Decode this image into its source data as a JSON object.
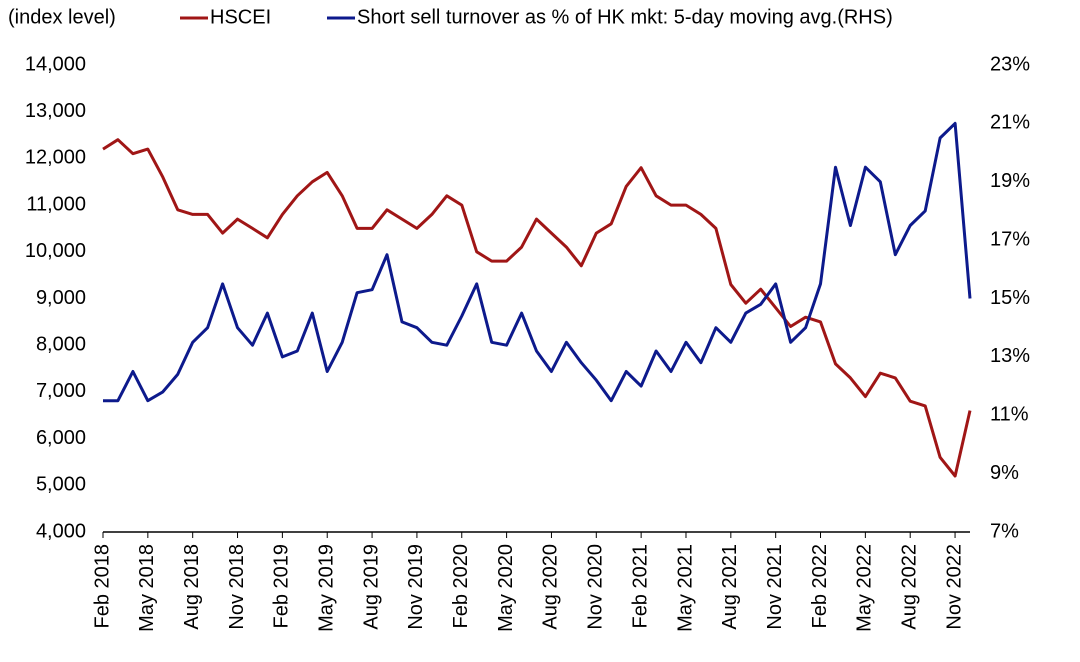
{
  "chart_data": {
    "type": "line",
    "y_label": "(index level)",
    "x": [
      "2018-02",
      "2018-03",
      "2018-04",
      "2018-05",
      "2018-06",
      "2018-07",
      "2018-08",
      "2018-09",
      "2018-10",
      "2018-11",
      "2018-12",
      "2019-01",
      "2019-02",
      "2019-03",
      "2019-04",
      "2019-05",
      "2019-06",
      "2019-07",
      "2019-08",
      "2019-09",
      "2019-10",
      "2019-11",
      "2019-12",
      "2020-01",
      "2020-02",
      "2020-03",
      "2020-04",
      "2020-05",
      "2020-06",
      "2020-07",
      "2020-08",
      "2020-09",
      "2020-10",
      "2020-11",
      "2020-12",
      "2021-01",
      "2021-02",
      "2021-03",
      "2021-04",
      "2021-05",
      "2021-06",
      "2021-07",
      "2021-08",
      "2021-09",
      "2021-10",
      "2021-11",
      "2021-12",
      "2022-01",
      "2022-02",
      "2022-03",
      "2022-04",
      "2022-05",
      "2022-06",
      "2022-07",
      "2022-08",
      "2022-09",
      "2022-10",
      "2022-11",
      "2022-12"
    ],
    "series": [
      {
        "name": "HSCEI",
        "color": "#a01616",
        "values": [
          12200,
          12400,
          12100,
          12200,
          11600,
          10900,
          10800,
          10800,
          10400,
          10700,
          10500,
          10300,
          10800,
          11200,
          11500,
          11700,
          11200,
          10500,
          10500,
          10900,
          10700,
          10500,
          10800,
          11200,
          11000,
          10000,
          9800,
          9800,
          10100,
          10700,
          10400,
          10100,
          9700,
          10400,
          10600,
          11400,
          11800,
          11200,
          11000,
          11000,
          10800,
          10500,
          9300,
          8900,
          9200,
          8800,
          8400,
          8600,
          8500,
          7600,
          7300,
          6900,
          7400,
          7300,
          6800,
          6700,
          5600,
          5200,
          6600
        ]
      },
      {
        "name": "Short sell turnover as % of HK mkt: 5-day moving avg.(RHS)",
        "color": "#0d1a8c",
        "axis": "y2",
        "values": [
          11.5,
          11.5,
          12.5,
          11.5,
          11.8,
          12.4,
          13.5,
          14,
          15.5,
          14,
          13.4,
          14.5,
          13,
          13.2,
          14.5,
          12.5,
          13.5,
          15.2,
          15.3,
          16.5,
          14.2,
          14,
          13.5,
          13.4,
          14.4,
          15.5,
          13.5,
          13.4,
          14.5,
          13.2,
          12.5,
          13.5,
          12.8,
          12.2,
          11.5,
          12.5,
          12,
          13.2,
          12.5,
          13.5,
          12.8,
          14,
          13.5,
          14.5,
          14.8,
          15.5,
          13.5,
          14,
          15.5,
          19.5,
          17.5,
          19.5,
          19,
          16.5,
          17.5,
          18,
          20.5,
          21,
          15
        ]
      }
    ],
    "xlim": [
      "2018-02",
      "2022-12"
    ],
    "xticks": [
      {
        "value": "2018-02",
        "label": "Feb 2018"
      },
      {
        "value": "2018-05",
        "label": "May 2018"
      },
      {
        "value": "2018-08",
        "label": "Aug 2018"
      },
      {
        "value": "2018-11",
        "label": "Nov 2018"
      },
      {
        "value": "2019-02",
        "label": "Feb 2019"
      },
      {
        "value": "2019-05",
        "label": "May 2019"
      },
      {
        "value": "2019-08",
        "label": "Aug 2019"
      },
      {
        "value": "2019-11",
        "label": "Nov 2019"
      },
      {
        "value": "2020-02",
        "label": "Feb 2020"
      },
      {
        "value": "2020-05",
        "label": "May 2020"
      },
      {
        "value": "2020-08",
        "label": "Aug 2020"
      },
      {
        "value": "2020-11",
        "label": "Nov 2020"
      },
      {
        "value": "2021-02",
        "label": "Feb 2021"
      },
      {
        "value": "2021-05",
        "label": "May 2021"
      },
      {
        "value": "2021-08",
        "label": "Aug 2021"
      },
      {
        "value": "2021-11",
        "label": "Nov 2021"
      },
      {
        "value": "2022-02",
        "label": "Feb 2022"
      },
      {
        "value": "2022-05",
        "label": "May 2022"
      },
      {
        "value": "2022-08",
        "label": "Aug 2022"
      },
      {
        "value": "2022-11",
        "label": "Nov 2022"
      }
    ],
    "ylim": [
      4000,
      14000
    ],
    "yticks": [
      {
        "value": 4000,
        "label": "4,000"
      },
      {
        "value": 5000,
        "label": "5,000"
      },
      {
        "value": 6000,
        "label": "6,000"
      },
      {
        "value": 7000,
        "label": "7,000"
      },
      {
        "value": 8000,
        "label": "8,000"
      },
      {
        "value": 9000,
        "label": "9,000"
      },
      {
        "value": 10000,
        "label": "10,000"
      },
      {
        "value": 11000,
        "label": "11,000"
      },
      {
        "value": 12000,
        "label": "12,000"
      },
      {
        "value": 13000,
        "label": "13,000"
      },
      {
        "value": 14000,
        "label": "14,000"
      }
    ],
    "y2lim": [
      7,
      23
    ],
    "y2ticks": [
      {
        "value": 7,
        "label": "7%"
      },
      {
        "value": 9,
        "label": "9%"
      },
      {
        "value": 11,
        "label": "11%"
      },
      {
        "value": 13,
        "label": "13%"
      },
      {
        "value": 15,
        "label": "15%"
      },
      {
        "value": 17,
        "label": "17%"
      },
      {
        "value": 19,
        "label": "19%"
      },
      {
        "value": 21,
        "label": "21%"
      },
      {
        "value": 23,
        "label": "23%"
      }
    ]
  }
}
